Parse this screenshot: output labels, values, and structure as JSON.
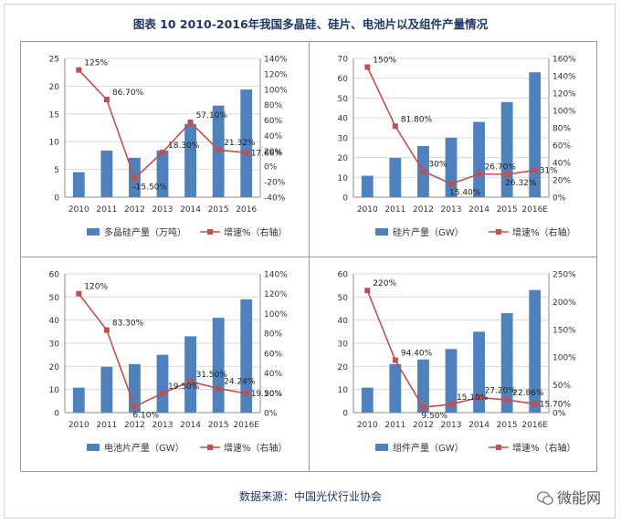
{
  "figure": {
    "title": "图表 10  2010-2016年我国多晶硅、硅片、电池片以及组件产量情况",
    "source": "数据来源：中国光伏行业协会",
    "watermark": "微能网"
  },
  "colors": {
    "bar": "#4f81bd",
    "line": "#c0504d",
    "title": "#1f3864",
    "grid": "#d9d9d9"
  },
  "chart_data": [
    {
      "type": "bar",
      "categories": [
        "2010",
        "2011",
        "2012",
        "2013",
        "2014",
        "2015",
        "2016"
      ],
      "series": [
        {
          "name": "多晶硅产量（万吨）",
          "axis": "left",
          "values": [
            4.5,
            8.4,
            7.1,
            8.4,
            13.2,
            16.5,
            19.4
          ]
        },
        {
          "name": "增速%（右轴）",
          "axis": "right",
          "type": "line",
          "values": [
            125,
            86.7,
            -15.5,
            18.3,
            57.1,
            21.32,
            17.66
          ]
        }
      ],
      "data_labels": [
        "125%",
        "86.70%",
        "-15.50%",
        "18.30%",
        "57.10%",
        "21.32%",
        "17.66%"
      ],
      "ylim": [
        0,
        25
      ],
      "yticks": [
        "0",
        "5",
        "10",
        "15",
        "20",
        "25"
      ],
      "y2lim": [
        -40,
        140
      ],
      "y2ticks": [
        "-40%",
        "-20%",
        "0%",
        "20%",
        "40%",
        "60%",
        "80%",
        "100%",
        "120%",
        "140%"
      ],
      "grid": true,
      "legend": "bottom"
    },
    {
      "type": "bar",
      "categories": [
        "2010",
        "2011",
        "2012",
        "2013",
        "2014",
        "2015",
        "2016E"
      ],
      "series": [
        {
          "name": "硅片产量（GW）",
          "axis": "left",
          "values": [
            10.8,
            19.8,
            25.8,
            30,
            38,
            48,
            63
          ]
        },
        {
          "name": "增速%（右轴）",
          "axis": "right",
          "type": "line",
          "values": [
            150,
            81.8,
            30,
            15.4,
            26.7,
            26.32,
            31
          ]
        }
      ],
      "data_labels": [
        "150%",
        "81.80%",
        "30%",
        "15.40%",
        "26.70%",
        "26.32%",
        "31%"
      ],
      "ylim": [
        0,
        70
      ],
      "yticks": [
        "0",
        "10",
        "20",
        "30",
        "40",
        "50",
        "60",
        "70"
      ],
      "y2lim": [
        0,
        160
      ],
      "y2ticks": [
        "0%",
        "20%",
        "40%",
        "60%",
        "80%",
        "100%",
        "120%",
        "140%",
        "160%"
      ],
      "grid": true,
      "legend": "bottom"
    },
    {
      "type": "bar",
      "categories": [
        "2010",
        "2011",
        "2012",
        "2013",
        "2014",
        "2015",
        "2016E"
      ],
      "series": [
        {
          "name": "电池片产量（GW）",
          "axis": "left",
          "values": [
            10.8,
            19.8,
            21,
            25,
            33,
            41,
            49
          ]
        },
        {
          "name": "增速%（右轴）",
          "axis": "right",
          "type": "line",
          "values": [
            120,
            83.3,
            6.1,
            19.5,
            31.5,
            24.24,
            19.5
          ]
        }
      ],
      "data_labels": [
        "120%",
        "83.30%",
        "6.10%",
        "19.50%",
        "31.50%",
        "24.24%",
        "19.50%"
      ],
      "ylim": [
        0,
        60
      ],
      "yticks": [
        "0",
        "10",
        "20",
        "30",
        "40",
        "50",
        "60"
      ],
      "y2lim": [
        0,
        140
      ],
      "y2ticks": [
        "0%",
        "20%",
        "40%",
        "60%",
        "80%",
        "100%",
        "120%",
        "140%"
      ],
      "grid": true,
      "legend": "bottom"
    },
    {
      "type": "bar",
      "categories": [
        "2010",
        "2011",
        "2012",
        "2013",
        "2014",
        "2015",
        "2016E"
      ],
      "series": [
        {
          "name": "组件产量（GW）",
          "axis": "left",
          "values": [
            10.8,
            21,
            23,
            27.5,
            35,
            43,
            53
          ]
        },
        {
          "name": "增速%（右轴）",
          "axis": "right",
          "type": "line",
          "values": [
            220,
            94.4,
            9.5,
            15.1,
            27.2,
            22.86,
            15.7
          ]
        }
      ],
      "data_labels": [
        "220%",
        "94.40%",
        "9.50%",
        "15.10%",
        "27.20%",
        "22.86%",
        "15.70%"
      ],
      "ylim": [
        0,
        60
      ],
      "yticks": [
        "0",
        "10",
        "20",
        "30",
        "40",
        "50",
        "60"
      ],
      "y2lim": [
        0,
        250
      ],
      "y2ticks": [
        "0%",
        "50%",
        "100%",
        "150%",
        "200%",
        "250%"
      ],
      "grid": true,
      "legend": "bottom"
    }
  ]
}
